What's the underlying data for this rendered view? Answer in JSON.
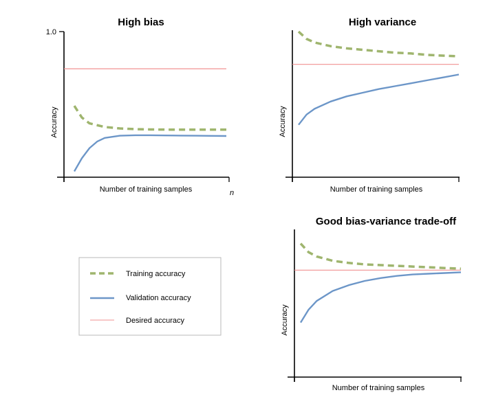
{
  "colors": {
    "training": "#9fb56e",
    "validation": "#6c96c8",
    "desired": "#f09090",
    "axis": "#000000",
    "legend_border": "#b8b8b8"
  },
  "legend": {
    "items": [
      {
        "label": "Training accuracy",
        "style": "dashed",
        "color_key": "training"
      },
      {
        "label": "Validation accuracy",
        "style": "solid",
        "color_key": "validation"
      },
      {
        "label": "Desired accuracy",
        "style": "thin",
        "color_key": "desired"
      }
    ]
  },
  "chart_data": [
    {
      "id": "high-bias",
      "type": "line",
      "title": "High bias",
      "xlabel": "Number of training samples",
      "ylabel": "Accuracy",
      "x_end_label": "n",
      "y_tick_label": "1.0",
      "ylim": [
        0,
        1
      ],
      "grid": false,
      "series": [
        {
          "name": "Training accuracy",
          "color_key": "training",
          "style": "dashed",
          "x": [
            0,
            0.05,
            0.1,
            0.2,
            0.3,
            0.4,
            0.5,
            0.6,
            0.7,
            0.8,
            0.9,
            1.0
          ],
          "y": [
            0.49,
            0.41,
            0.37,
            0.345,
            0.335,
            0.33,
            0.328,
            0.327,
            0.327,
            0.327,
            0.327,
            0.327
          ]
        },
        {
          "name": "Validation accuracy",
          "color_key": "validation",
          "style": "solid",
          "x": [
            0,
            0.05,
            0.1,
            0.15,
            0.2,
            0.3,
            0.4,
            0.5,
            0.6,
            0.7,
            0.8,
            0.9,
            1.0
          ],
          "y": [
            0.04,
            0.13,
            0.2,
            0.245,
            0.27,
            0.285,
            0.288,
            0.288,
            0.287,
            0.286,
            0.285,
            0.284,
            0.283
          ]
        },
        {
          "name": "Desired accuracy",
          "color_key": "desired",
          "style": "thin",
          "x": [
            0,
            1.0
          ],
          "y": [
            0.745,
            0.745
          ]
        }
      ]
    },
    {
      "id": "high-variance",
      "type": "line",
      "title": "High variance",
      "xlabel": "Number of training samples",
      "ylabel": "Accuracy",
      "ylim": [
        0,
        1
      ],
      "grid": false,
      "series": [
        {
          "name": "Training accuracy",
          "color_key": "training",
          "style": "dashed",
          "x": [
            0,
            0.05,
            0.1,
            0.2,
            0.3,
            0.4,
            0.5,
            0.6,
            0.7,
            0.8,
            0.9,
            1.0
          ],
          "y": [
            1.0,
            0.95,
            0.925,
            0.9,
            0.885,
            0.875,
            0.865,
            0.855,
            0.85,
            0.84,
            0.835,
            0.83
          ]
        },
        {
          "name": "Validation accuracy",
          "color_key": "validation",
          "style": "solid",
          "x": [
            0,
            0.05,
            0.1,
            0.2,
            0.3,
            0.4,
            0.5,
            0.6,
            0.7,
            0.8,
            0.9,
            1.0
          ],
          "y": [
            0.36,
            0.43,
            0.47,
            0.52,
            0.555,
            0.58,
            0.605,
            0.625,
            0.645,
            0.665,
            0.685,
            0.705
          ]
        },
        {
          "name": "Desired accuracy",
          "color_key": "desired",
          "style": "thin",
          "x": [
            0,
            1.0
          ],
          "y": [
            0.775,
            0.775
          ]
        }
      ]
    },
    {
      "id": "good-tradeoff",
      "type": "line",
      "title": "Good bias-variance trade-off",
      "xlabel": "Number of training samples",
      "ylabel": "Accuracy",
      "ylim": [
        0,
        1
      ],
      "grid": false,
      "series": [
        {
          "name": "Training accuracy",
          "color_key": "training",
          "style": "dashed",
          "x": [
            0,
            0.05,
            0.1,
            0.2,
            0.3,
            0.4,
            0.5,
            0.6,
            0.7,
            0.8,
            0.9,
            1.0
          ],
          "y": [
            0.93,
            0.87,
            0.84,
            0.81,
            0.795,
            0.785,
            0.78,
            0.775,
            0.77,
            0.765,
            0.76,
            0.755
          ]
        },
        {
          "name": "Validation accuracy",
          "color_key": "validation",
          "style": "solid",
          "x": [
            0,
            0.05,
            0.1,
            0.2,
            0.3,
            0.4,
            0.5,
            0.6,
            0.7,
            0.8,
            0.9,
            1.0
          ],
          "y": [
            0.38,
            0.47,
            0.53,
            0.6,
            0.64,
            0.67,
            0.69,
            0.705,
            0.715,
            0.72,
            0.725,
            0.73
          ]
        },
        {
          "name": "Desired accuracy",
          "color_key": "desired",
          "style": "thin",
          "x": [
            0,
            1.0
          ],
          "y": [
            0.745,
            0.745
          ]
        }
      ]
    }
  ]
}
